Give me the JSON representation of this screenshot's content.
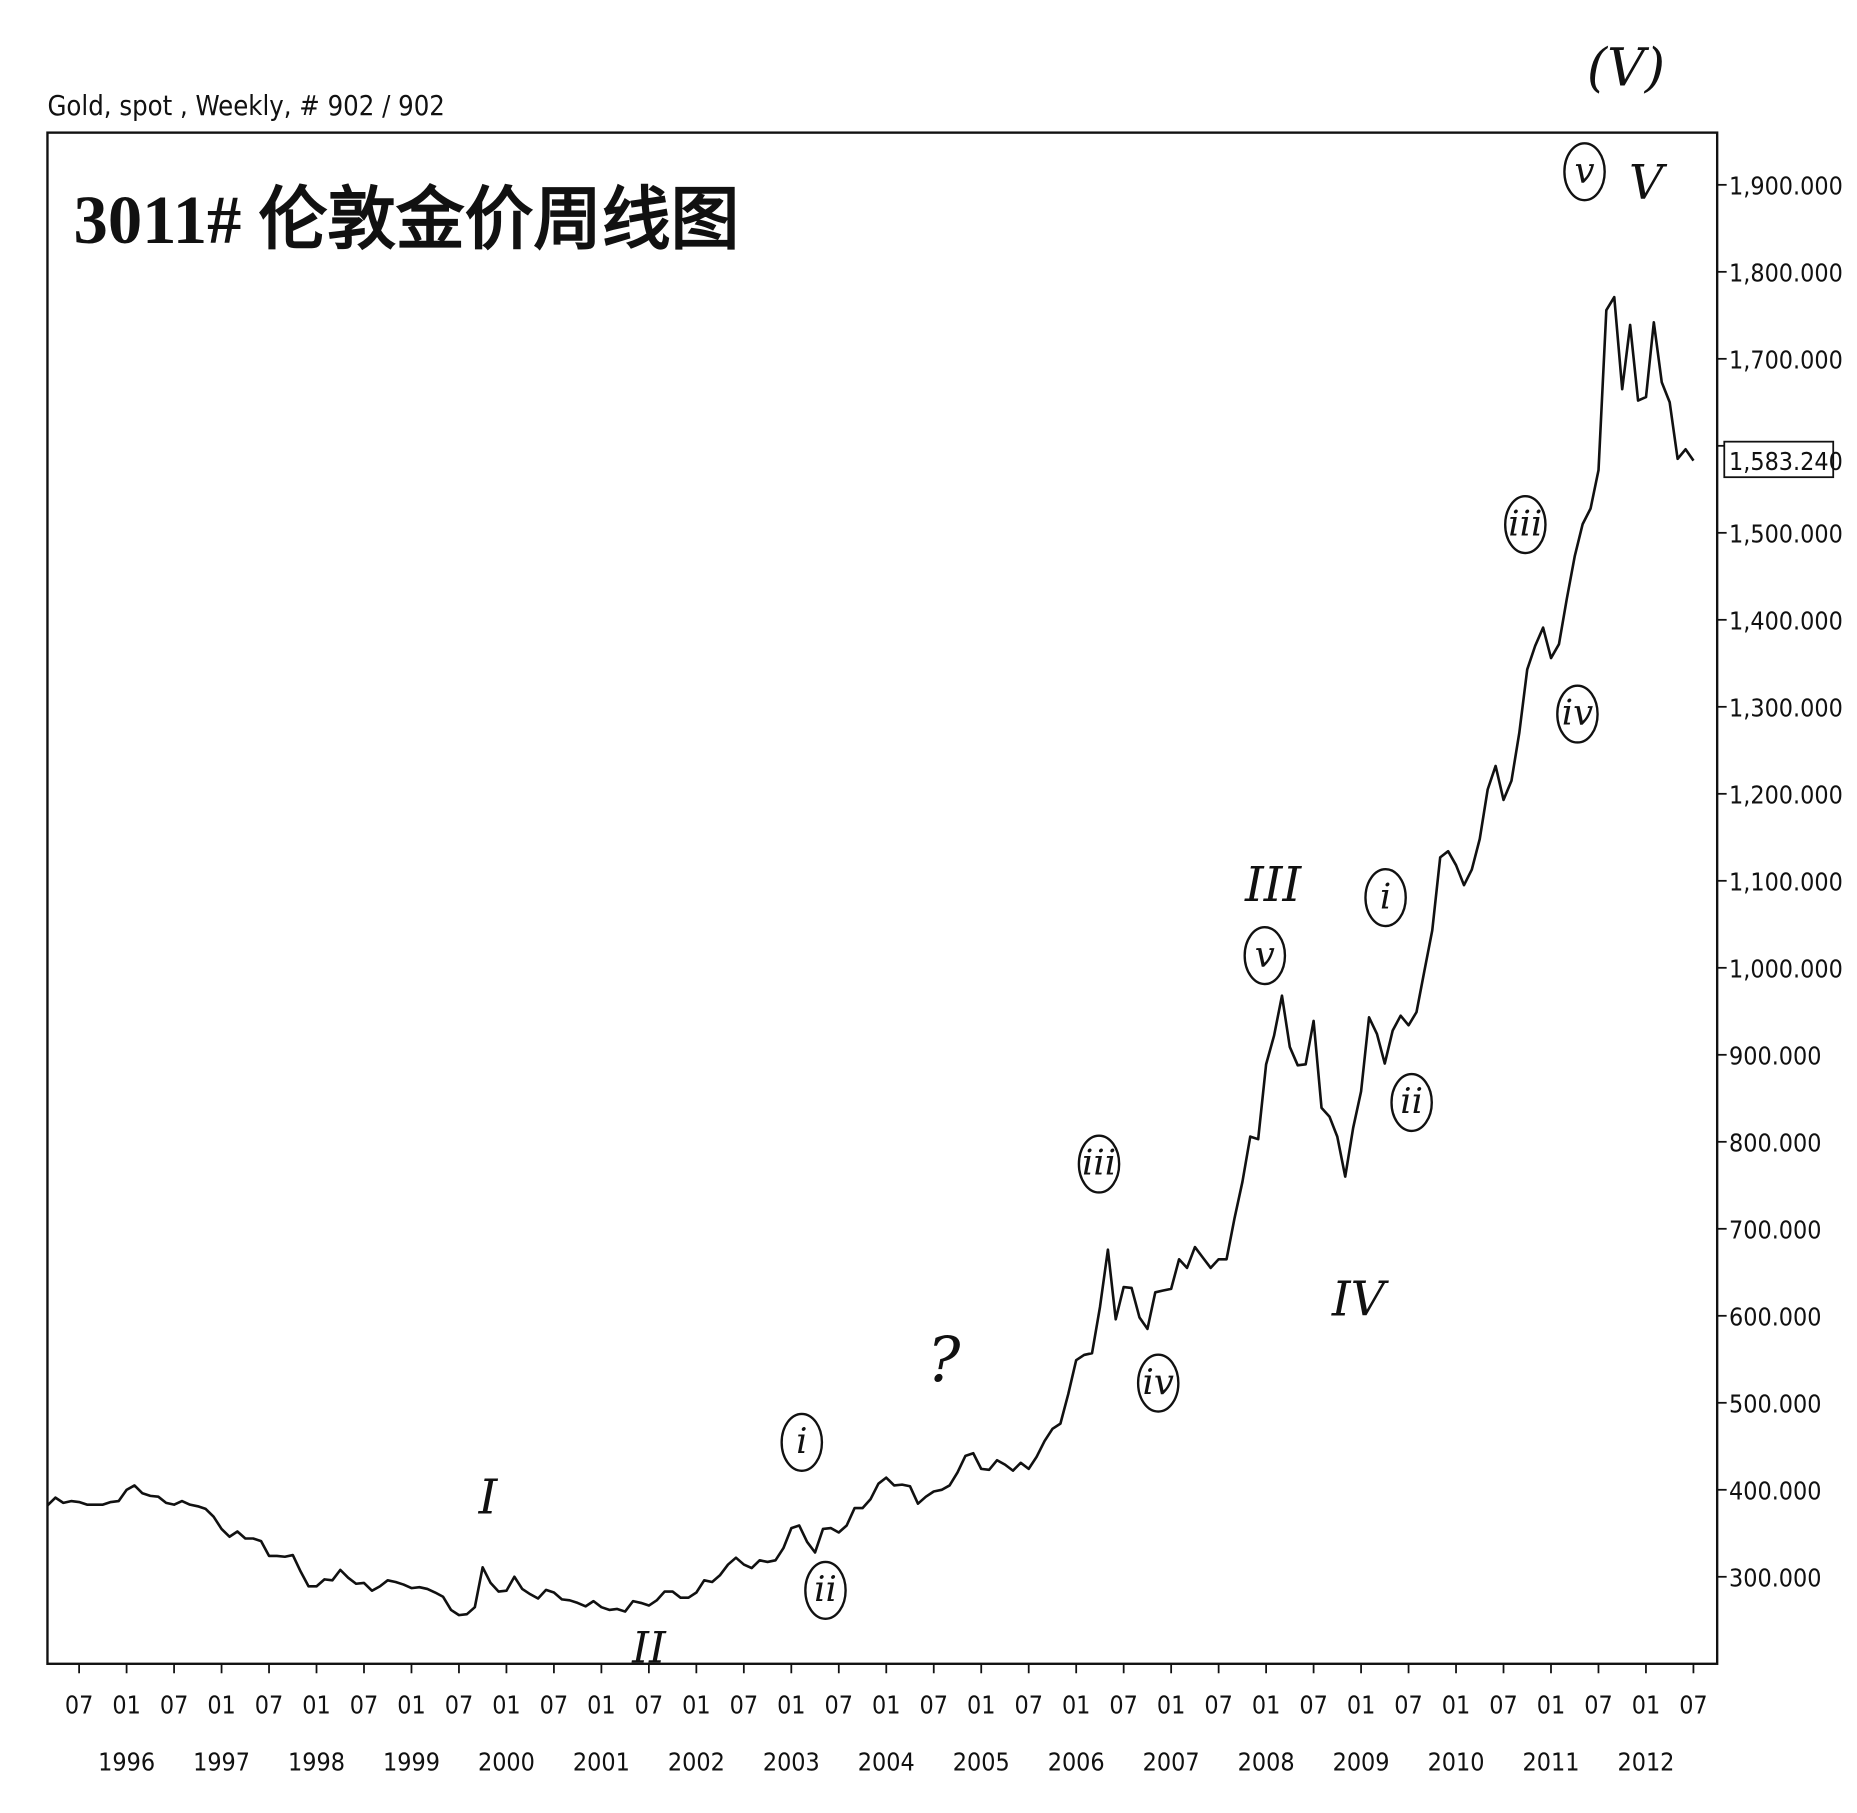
{
  "chart_data": {
    "type": "line",
    "title": "Gold, spot , Weekly, # 902 / 902",
    "subtitle": "3011#  伦敦金价周线图",
    "last_price_label": "1,583.240",
    "color": "#111111",
    "grid": false,
    "xlim": [
      "1995-03",
      "2012-10"
    ],
    "ylim": [
      200,
      1960
    ],
    "yticks": [
      {
        "value": 300,
        "label": "300.000"
      },
      {
        "value": 400,
        "label": "400.000"
      },
      {
        "value": 500,
        "label": "500.000"
      },
      {
        "value": 600,
        "label": "600.000"
      },
      {
        "value": 700,
        "label": "700.000"
      },
      {
        "value": 800,
        "label": "800.000"
      },
      {
        "value": 900,
        "label": "900.000"
      },
      {
        "value": 1000,
        "label": "1,000.000"
      },
      {
        "value": 1100,
        "label": "1,100.000"
      },
      {
        "value": 1200,
        "label": "1,200.000"
      },
      {
        "value": 1300,
        "label": "1,300.000"
      },
      {
        "value": 1400,
        "label": "1,400.000"
      },
      {
        "value": 1500,
        "label": "1,500.000"
      },
      {
        "value": 1600,
        "label": ""
      },
      {
        "value": 1700,
        "label": "1,700.000"
      },
      {
        "value": 1800,
        "label": "1,800.000"
      },
      {
        "value": 1900,
        "label": "1,900.000"
      }
    ],
    "xticks": [
      {
        "value": "1995-07",
        "label": "07"
      },
      {
        "value": "1996-01",
        "label": "01"
      },
      {
        "value": "1996-07",
        "label": "07"
      },
      {
        "value": "1997-01",
        "label": "01"
      },
      {
        "value": "1997-07",
        "label": "07"
      },
      {
        "value": "1998-01",
        "label": "01"
      },
      {
        "value": "1998-07",
        "label": "07"
      },
      {
        "value": "1999-01",
        "label": "01"
      },
      {
        "value": "1999-07",
        "label": "07"
      },
      {
        "value": "2000-01",
        "label": "01"
      },
      {
        "value": "2000-07",
        "label": "07"
      },
      {
        "value": "2001-01",
        "label": "01"
      },
      {
        "value": "2001-07",
        "label": "07"
      },
      {
        "value": "2002-01",
        "label": "01"
      },
      {
        "value": "2002-07",
        "label": "07"
      },
      {
        "value": "2003-01",
        "label": "01"
      },
      {
        "value": "2003-07",
        "label": "07"
      },
      {
        "value": "2004-01",
        "label": "01"
      },
      {
        "value": "2004-07",
        "label": "07"
      },
      {
        "value": "2005-01",
        "label": "01"
      },
      {
        "value": "2005-07",
        "label": "07"
      },
      {
        "value": "2006-01",
        "label": "01"
      },
      {
        "value": "2006-07",
        "label": "07"
      },
      {
        "value": "2007-01",
        "label": "01"
      },
      {
        "value": "2007-07",
        "label": "07"
      },
      {
        "value": "2008-01",
        "label": "01"
      },
      {
        "value": "2008-07",
        "label": "07"
      },
      {
        "value": "2009-01",
        "label": "01"
      },
      {
        "value": "2009-07",
        "label": "07"
      },
      {
        "value": "2010-01",
        "label": "01"
      },
      {
        "value": "2010-07",
        "label": "07"
      },
      {
        "value": "2011-01",
        "label": "01"
      },
      {
        "value": "2011-07",
        "label": "07"
      },
      {
        "value": "2012-01",
        "label": "01"
      },
      {
        "value": "2012-07",
        "label": "07"
      }
    ],
    "xticks_years": [
      1996,
      1997,
      1998,
      1999,
      2000,
      2001,
      2002,
      2003,
      2004,
      2005,
      2006,
      2007,
      2008,
      2009,
      2010,
      2011,
      2012
    ],
    "x": [
      "1995-03",
      "1995-04",
      "1995-05",
      "1995-06",
      "1995-07",
      "1995-08",
      "1995-09",
      "1995-10",
      "1995-11",
      "1995-12",
      "1996-01",
      "1996-02",
      "1996-03",
      "1996-04",
      "1996-05",
      "1996-06",
      "1996-07",
      "1996-08",
      "1996-09",
      "1996-10",
      "1996-11",
      "1996-12",
      "1997-01",
      "1997-02",
      "1997-03",
      "1997-04",
      "1997-05",
      "1997-06",
      "1997-07",
      "1997-08",
      "1997-09",
      "1997-10",
      "1997-11",
      "1997-12",
      "1998-01",
      "1998-02",
      "1998-03",
      "1998-04",
      "1998-05",
      "1998-06",
      "1998-07",
      "1998-08",
      "1998-09",
      "1998-10",
      "1998-11",
      "1998-12",
      "1999-01",
      "1999-02",
      "1999-03",
      "1999-04",
      "1999-05",
      "1999-06",
      "1999-07",
      "1999-08",
      "1999-09",
      "1999-10",
      "1999-11",
      "1999-12",
      "2000-01",
      "2000-02",
      "2000-03",
      "2000-04",
      "2000-05",
      "2000-06",
      "2000-07",
      "2000-08",
      "2000-09",
      "2000-10",
      "2000-11",
      "2000-12",
      "2001-01",
      "2001-02",
      "2001-03",
      "2001-04",
      "2001-05",
      "2001-06",
      "2001-07",
      "2001-08",
      "2001-09",
      "2001-10",
      "2001-11",
      "2001-12",
      "2002-01",
      "2002-02",
      "2002-03",
      "2002-04",
      "2002-05",
      "2002-06",
      "2002-07",
      "2002-08",
      "2002-09",
      "2002-10",
      "2002-11",
      "2002-12",
      "2003-01",
      "2003-02",
      "2003-03",
      "2003-04",
      "2003-05",
      "2003-06",
      "2003-07",
      "2003-08",
      "2003-09",
      "2003-10",
      "2003-11",
      "2003-12",
      "2004-01",
      "2004-02",
      "2004-03",
      "2004-04",
      "2004-05",
      "2004-06",
      "2004-07",
      "2004-08",
      "2004-09",
      "2004-10",
      "2004-11",
      "2004-12",
      "2005-01",
      "2005-02",
      "2005-03",
      "2005-04",
      "2005-05",
      "2005-06",
      "2005-07",
      "2005-08",
      "2005-09",
      "2005-10",
      "2005-11",
      "2005-12",
      "2006-01",
      "2006-02",
      "2006-03",
      "2006-04",
      "2006-05",
      "2006-06",
      "2006-07",
      "2006-08",
      "2006-09",
      "2006-10",
      "2006-11",
      "2006-12",
      "2007-01",
      "2007-02",
      "2007-03",
      "2007-04",
      "2007-05",
      "2007-06",
      "2007-07",
      "2007-08",
      "2007-09",
      "2007-10",
      "2007-11",
      "2007-12",
      "2008-01",
      "2008-02",
      "2008-03",
      "2008-04",
      "2008-05",
      "2008-06",
      "2008-07",
      "2008-08",
      "2008-09",
      "2008-10",
      "2008-11",
      "2008-12",
      "2009-01",
      "2009-02",
      "2009-03",
      "2009-04",
      "2009-05",
      "2009-06",
      "2009-07",
      "2009-08",
      "2009-09",
      "2009-10",
      "2009-11",
      "2009-12",
      "2010-01",
      "2010-02",
      "2010-03",
      "2010-04",
      "2010-05",
      "2010-06",
      "2010-07",
      "2010-08",
      "2010-09",
      "2010-10",
      "2010-11",
      "2010-12",
      "2011-01",
      "2011-02",
      "2011-03",
      "2011-04",
      "2011-05",
      "2011-06",
      "2011-07",
      "2011-08",
      "2011-09",
      "2011-10",
      "2011-11",
      "2011-12",
      "2012-01",
      "2012-02",
      "2012-03",
      "2012-04",
      "2012-05",
      "2012-06",
      "2012-07"
    ],
    "values": [
      382,
      391,
      385,
      387,
      386,
      383,
      383,
      383,
      386,
      387,
      400,
      405,
      396,
      393,
      392,
      385,
      383,
      387,
      383,
      381,
      378,
      369,
      355,
      346,
      352,
      344,
      344,
      341,
      324,
      324,
      323,
      325,
      306,
      289,
      289,
      297,
      296,
      308,
      299,
      292,
      293,
      284,
      289,
      296,
      294,
      291,
      287,
      288,
      286,
      282,
      277,
      262,
      256,
      257,
      265,
      311,
      293,
      283,
      284,
      300,
      286,
      280,
      275,
      285,
      282,
      274,
      273,
      270,
      266,
      272,
      265,
      262,
      263,
      260,
      272,
      270,
      267,
      273,
      283,
      283,
      276,
      276,
      282,
      296,
      294,
      302,
      314,
      322,
      314,
      310,
      319,
      317,
      319,
      333,
      356,
      359,
      340,
      328,
      355,
      356,
      351,
      359,
      379,
      379,
      389,
      407,
      414,
      405,
      406,
      404,
      384,
      392,
      398,
      400,
      405,
      420,
      439,
      442,
      424,
      423,
      434,
      429,
      422,
      431,
      424,
      438,
      456,
      470,
      476,
      510,
      549,
      555,
      557,
      610,
      676,
      596,
      633,
      632,
      598,
      585,
      627,
      629,
      631,
      665,
      655,
      679,
      667,
      655,
      665,
      665,
      712,
      754,
      806,
      803,
      889,
      922,
      968,
      909,
      888,
      889,
      939,
      839,
      829,
      806,
      760,
      816,
      858,
      943,
      924,
      890,
      928,
      945,
      934,
      949,
      996,
      1043,
      1127,
      1134,
      1118,
      1095,
      1113,
      1148,
      1205,
      1232,
      1193,
      1215,
      1270,
      1343,
      1370,
      1391,
      1356,
      1372,
      1424,
      1473,
      1510,
      1528,
      1572,
      1756,
      1771,
      1665,
      1739,
      1652,
      1656,
      1742,
      1673,
      1650,
      1585,
      1596,
      1583
    ],
    "annotations": [
      {
        "text": "I",
        "circled": false
      },
      {
        "text": "II",
        "circled": false
      },
      {
        "text": "i",
        "circled": true
      },
      {
        "text": "ii",
        "circled": true
      },
      {
        "text": "?",
        "circled": false
      },
      {
        "text": "iii",
        "circled": true
      },
      {
        "text": "iv",
        "circled": true
      },
      {
        "text": "III",
        "circled": false
      },
      {
        "text": "v",
        "circled": true
      },
      {
        "text": "IV",
        "circled": false
      },
      {
        "text": "i",
        "circled": true
      },
      {
        "text": "ii",
        "circled": true
      },
      {
        "text": "iii",
        "circled": true
      },
      {
        "text": "iv",
        "circled": true
      },
      {
        "text": "v",
        "circled": true
      },
      {
        "text": "V",
        "circled": false
      },
      {
        "text": "(V)",
        "circled": false
      }
    ]
  }
}
